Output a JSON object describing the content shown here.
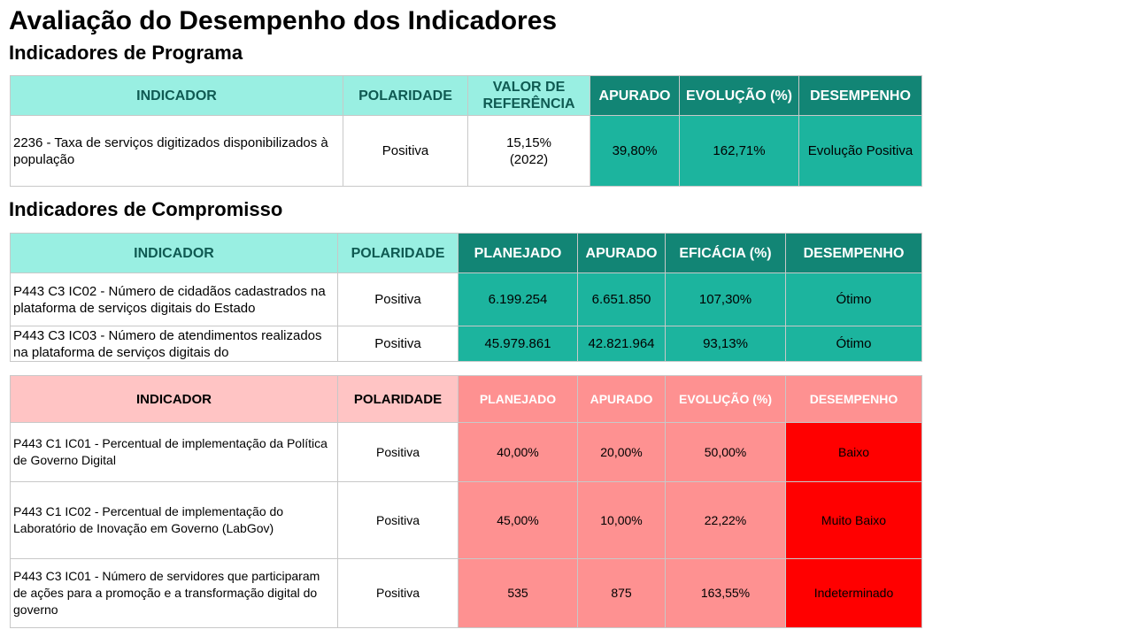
{
  "page": {
    "title": "Avaliação do Desempenho dos Indicadores",
    "section_programa": "Indicadores de Programa",
    "section_compromisso": "Indicadores de Compromisso"
  },
  "programa": {
    "headers": [
      "INDICADOR",
      "POLARIDADE",
      "VALOR DE REFERÊNCIA",
      "APURADO",
      "EVOLUÇÃO  (%)",
      "DESEMPENHO"
    ],
    "rows": [
      {
        "indicador": "2236 - Taxa de serviços digitizados disponibilizados à população",
        "polaridade": "Positiva",
        "valor_referencia": "15,15%",
        "ano_referencia": "(2022)",
        "apurado": "39,80%",
        "evolucao": "162,71%",
        "desempenho": "Evolução Positiva"
      }
    ]
  },
  "compromisso": {
    "headers": [
      "INDICADOR",
      "POLARIDADE",
      "PLANEJADO",
      "APURADO",
      "EFICÁCIA  (%)",
      "DESEMPENHO"
    ],
    "rows": [
      {
        "indicador": "P443 C3 IC02 -  Número de cidadãos cadastrados na plataforma de serviços digitais do Estado",
        "polaridade": "Positiva",
        "planejado": "6.199.254",
        "apurado": "6.651.850",
        "eficacia": "107,30%",
        "desempenho": "Ótimo"
      },
      {
        "indicador": "P443 C3 IC03 - Número de atendimentos realizados na plataforma de serviços digitais do",
        "polaridade": "Positiva",
        "planejado": "45.979.861",
        "apurado": "42.821.964",
        "eficacia": "93,13%",
        "desempenho": "Ótimo"
      }
    ]
  },
  "compromisso_baixo": {
    "headers": [
      "INDICADOR",
      "POLARIDADE",
      "PLANEJADO",
      "APURADO",
      "EVOLUÇÃO  (%)",
      "DESEMPENHO"
    ],
    "rows": [
      {
        "indicador": "P443 C1 IC01 - Percentual de implementação da Política de Governo Digital",
        "polaridade": "Positiva",
        "planejado": "40,00%",
        "apurado": "20,00%",
        "evolucao": "50,00%",
        "desempenho": "Baixo"
      },
      {
        "indicador": "P443 C1 IC02 - Percentual de implementação do Laboratório de Inovação em Governo (LabGov)",
        "polaridade": "Positiva",
        "planejado": "45,00%",
        "apurado": "10,00%",
        "evolucao": "22,22%",
        "desempenho": "Muito Baixo"
      },
      {
        "indicador": "P443 C3 IC01 - Número de servidores que participaram de ações para a promoção e a transformação digital do governo",
        "polaridade": "Positiva",
        "planejado": "535",
        "apurado": "875",
        "evolucao": "163,55%",
        "desempenho": "Indeterminado"
      }
    ]
  },
  "colors": {
    "header_light": "#99efe2",
    "header_dark": "#128575",
    "cell_green": "#1cb49e",
    "header_pink": "#ffc4c4",
    "cell_salmon": "#fe9191",
    "cell_red": "#ff0000"
  }
}
